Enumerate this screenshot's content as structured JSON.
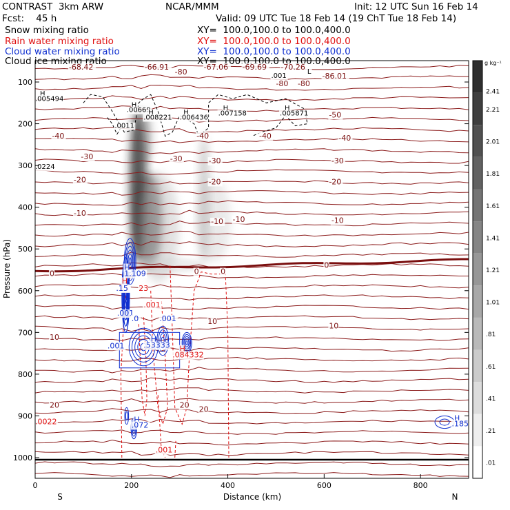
{
  "header": {
    "left_line1": "CONTRAST  3km ARW",
    "center_line1": "NCAR/MMM",
    "right_line1": "Init: 12 UTC Sun 16 Feb 14",
    "left_line2": "Fcst:    45 h",
    "right_line2": "Valid: 09 UTC Tue 18 Feb 14 (19 ChT Tue 18 Feb 14)",
    "fields": [
      {
        "name": "Snow mixing ratio",
        "xy": "XY=  100.0,100.0 to 100.0,400.0",
        "color": "#000000"
      },
      {
        "name": "Rain water mixing ratio",
        "xy": "XY=  100.0,100.0 to 100.0,400.0",
        "color": "#e01010"
      },
      {
        "name": "Cloud water mixing ratio",
        "xy": "XY=  100.0,100.0 to 100.0,400.0",
        "color": "#1030d0"
      },
      {
        "name": "Cloud ice mixing ratio",
        "xy": "XY=  100.0,100.0 to 100.0,400.0",
        "color": "#000000"
      }
    ]
  },
  "chart_data": {
    "type": "heatmap",
    "xlabel": "Distance (km)",
    "ylabel": "Pressure (hPa)",
    "xlim": [
      0,
      900
    ],
    "ylim": [
      1050,
      30
    ],
    "x_ticks": [
      0,
      200,
      400,
      600,
      800
    ],
    "y_ticks": [
      100,
      200,
      300,
      400,
      500,
      600,
      700,
      800,
      900,
      1000
    ],
    "endpoint_left": "S",
    "endpoint_right": "N",
    "colorbar_unit": "g kg⁻¹",
    "colorbar_levels": [
      "2.41",
      "2.21",
      "2.01",
      "1.81",
      "1.61",
      "1.41",
      "1.21",
      "1.01",
      ".81",
      ".61",
      ".41",
      ".21",
      ".01"
    ],
    "temperature_labels": [
      {
        "x": 70,
        "p": 70,
        "text": "-68.42"
      },
      {
        "x": 227,
        "p": 70,
        "text": "-66.91"
      },
      {
        "x": 350,
        "p": 70,
        "text": "-67.06"
      },
      {
        "x": 430,
        "p": 70,
        "text": "-69.69"
      },
      {
        "x": 510,
        "p": 70,
        "text": "-70.26"
      },
      {
        "x": 596,
        "p": 92,
        "text": "-86.01"
      },
      {
        "x": 290,
        "p": 82,
        "text": "-80"
      },
      {
        "x": 500,
        "p": 110,
        "text": "-80"
      },
      {
        "x": 545,
        "p": 110,
        "text": "-80"
      },
      {
        "x": 35,
        "p": 235,
        "text": "-40"
      },
      {
        "x": 335,
        "p": 235,
        "text": "-40"
      },
      {
        "x": 465,
        "p": 235,
        "text": "-40"
      },
      {
        "x": 630,
        "p": 240,
        "text": "-40"
      },
      {
        "x": 610,
        "p": 185,
        "text": "-50"
      },
      {
        "x": 95,
        "p": 285,
        "text": "-30"
      },
      {
        "x": 280,
        "p": 290,
        "text": "-30"
      },
      {
        "x": 360,
        "p": 295,
        "text": "-30"
      },
      {
        "x": 615,
        "p": 295,
        "text": "-30"
      },
      {
        "x": 80,
        "p": 340,
        "text": "-20"
      },
      {
        "x": 360,
        "p": 345,
        "text": "-20"
      },
      {
        "x": 610,
        "p": 345,
        "text": "-20"
      },
      {
        "x": 80,
        "p": 420,
        "text": "-10"
      },
      {
        "x": 365,
        "p": 440,
        "text": "-10"
      },
      {
        "x": 410,
        "p": 435,
        "text": "-10"
      },
      {
        "x": 615,
        "p": 438,
        "text": "-10"
      },
      {
        "x": 30,
        "p": 565,
        "text": "0"
      },
      {
        "x": 330,
        "p": 560,
        "text": "0"
      },
      {
        "x": 385,
        "p": 560,
        "text": "0"
      },
      {
        "x": 600,
        "p": 545,
        "text": "0"
      },
      {
        "x": 30,
        "p": 718,
        "text": "10"
      },
      {
        "x": 358,
        "p": 680,
        "text": "10"
      },
      {
        "x": 610,
        "p": 690,
        "text": "10"
      },
      {
        "x": 30,
        "p": 880,
        "text": "20"
      },
      {
        "x": 300,
        "p": 880,
        "text": "20"
      },
      {
        "x": 340,
        "p": 890,
        "text": "20"
      }
    ],
    "snow_labels": [
      {
        "x": 10,
        "p": 133,
        "text": "H"
      },
      {
        "x": 0,
        "p": 145,
        "text": ".005494"
      },
      {
        "x": 200,
        "p": 160,
        "text": "H"
      },
      {
        "x": 190,
        "p": 172,
        "text": ".00669"
      },
      {
        "x": 235,
        "p": 178,
        "text": "H"
      },
      {
        "x": 225,
        "p": 190,
        "text": ".008221"
      },
      {
        "x": 308,
        "p": 178,
        "text": "H"
      },
      {
        "x": 300,
        "p": 190,
        "text": ".006436"
      },
      {
        "x": 390,
        "p": 168,
        "text": "H"
      },
      {
        "x": 380,
        "p": 180,
        "text": ".007158"
      },
      {
        "x": 518,
        "p": 168,
        "text": "H"
      },
      {
        "x": 508,
        "p": 180,
        "text": ".005871"
      },
      {
        "x": 165,
        "p": 210,
        "text": ".0011"
      },
      {
        "x": 0,
        "p": 308,
        "text": ".0224"
      },
      {
        "x": 490,
        "p": 90,
        "text": ".001"
      },
      {
        "x": 565,
        "p": 80,
        "text": "L"
      }
    ],
    "rain_labels": [
      {
        "x": 180,
        "p": 583,
        "text": "H"
      },
      {
        "x": 170,
        "p": 600,
        "text": ".15"
      },
      {
        "x": 215,
        "p": 600,
        "text": "23"
      },
      {
        "x": 180,
        "p": 583,
        "text": ""
      },
      {
        "x": 225,
        "p": 640,
        "text": ".001"
      },
      {
        "x": 300,
        "p": 745,
        "text": "H"
      },
      {
        "x": 285,
        "p": 760,
        "text": ".084332"
      },
      {
        "x": 0,
        "p": 920,
        "text": ".0022"
      },
      {
        "x": 250,
        "p": 988,
        "text": ".001"
      }
    ],
    "cloud_water_labels": [
      {
        "x": 185,
        "p": 550,
        "text": "H"
      },
      {
        "x": 185,
        "p": 565,
        "text": "1.109"
      },
      {
        "x": 170,
        "p": 660,
        "text": ".001"
      },
      {
        "x": 168,
        "p": 600,
        "text": ".15"
      },
      {
        "x": 240,
        "p": 722,
        "text": "H"
      },
      {
        "x": 225,
        "p": 737,
        "text": ".53333"
      },
      {
        "x": 150,
        "p": 738,
        "text": ".001"
      },
      {
        "x": 258,
        "p": 673,
        "text": ".001"
      },
      {
        "x": 200,
        "p": 673,
        "text": ".0"
      },
      {
        "x": 205,
        "p": 915,
        "text": "H"
      },
      {
        "x": 200,
        "p": 928,
        "text": ".072"
      },
      {
        "x": 870,
        "p": 912,
        "text": "H"
      },
      {
        "x": 865,
        "p": 925,
        "text": ".185"
      }
    ]
  }
}
